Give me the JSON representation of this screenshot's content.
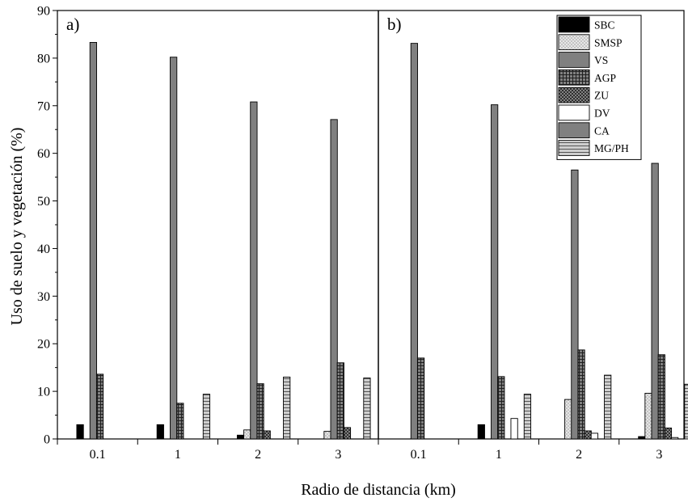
{
  "chart_data": {
    "type": "bar",
    "xlabel": "Radio de distancia (km)",
    "ylabel": "Uso de suelo y vegetación (%)",
    "ylim": [
      0,
      90
    ],
    "yticks": [
      0,
      10,
      20,
      30,
      40,
      50,
      60,
      70,
      80,
      90
    ],
    "grid": false,
    "legend_position": "top-right",
    "categories": [
      "0.1",
      "1",
      "2",
      "3"
    ],
    "legend": [
      {
        "name": "SBC",
        "pattern": "solid-black"
      },
      {
        "name": "SMSP",
        "pattern": "dotted-light"
      },
      {
        "name": "VS",
        "pattern": "solid-gray"
      },
      {
        "name": "AGP",
        "pattern": "grid-dark"
      },
      {
        "name": "ZU",
        "pattern": "crosshatch-dark"
      },
      {
        "name": "DV",
        "pattern": "solid-white"
      },
      {
        "name": "CA",
        "pattern": "solid-gray"
      },
      {
        "name": "MG/PH",
        "pattern": "horizontal-lines"
      }
    ],
    "panels": [
      {
        "label": "a)",
        "series": [
          {
            "name": "SBC",
            "values": [
              3.0,
              3.0,
              0.8,
              0
            ]
          },
          {
            "name": "SMSP",
            "values": [
              0,
              0,
              1.9,
              1.6
            ]
          },
          {
            "name": "VS",
            "values": [
              83.3,
              80.2,
              70.8,
              67.1
            ]
          },
          {
            "name": "AGP",
            "values": [
              13.6,
              7.5,
              11.6,
              16.0
            ]
          },
          {
            "name": "ZU",
            "values": [
              0,
              0,
              1.7,
              2.4
            ]
          },
          {
            "name": "DV",
            "values": [
              0,
              0,
              0,
              0
            ]
          },
          {
            "name": "CA",
            "values": [
              0,
              0,
              0,
              0
            ]
          },
          {
            "name": "MG/PH",
            "values": [
              0,
              9.4,
              13.0,
              12.8
            ]
          }
        ]
      },
      {
        "label": "b)",
        "series": [
          {
            "name": "SBC",
            "values": [
              0,
              3.0,
              0,
              0.5
            ]
          },
          {
            "name": "SMSP",
            "values": [
              0,
              0,
              8.3,
              9.6
            ]
          },
          {
            "name": "VS",
            "values": [
              83.1,
              70.2,
              56.5,
              57.9
            ]
          },
          {
            "name": "AGP",
            "values": [
              17.0,
              13.1,
              18.7,
              17.7
            ]
          },
          {
            "name": "ZU",
            "values": [
              0,
              0,
              1.7,
              2.3
            ]
          },
          {
            "name": "DV",
            "values": [
              0,
              4.3,
              1.2,
              0.3
            ]
          },
          {
            "name": "CA",
            "values": [
              0,
              0,
              0,
              0
            ]
          },
          {
            "name": "MG/PH",
            "values": [
              0,
              9.4,
              13.4,
              11.5
            ]
          }
        ]
      }
    ]
  }
}
